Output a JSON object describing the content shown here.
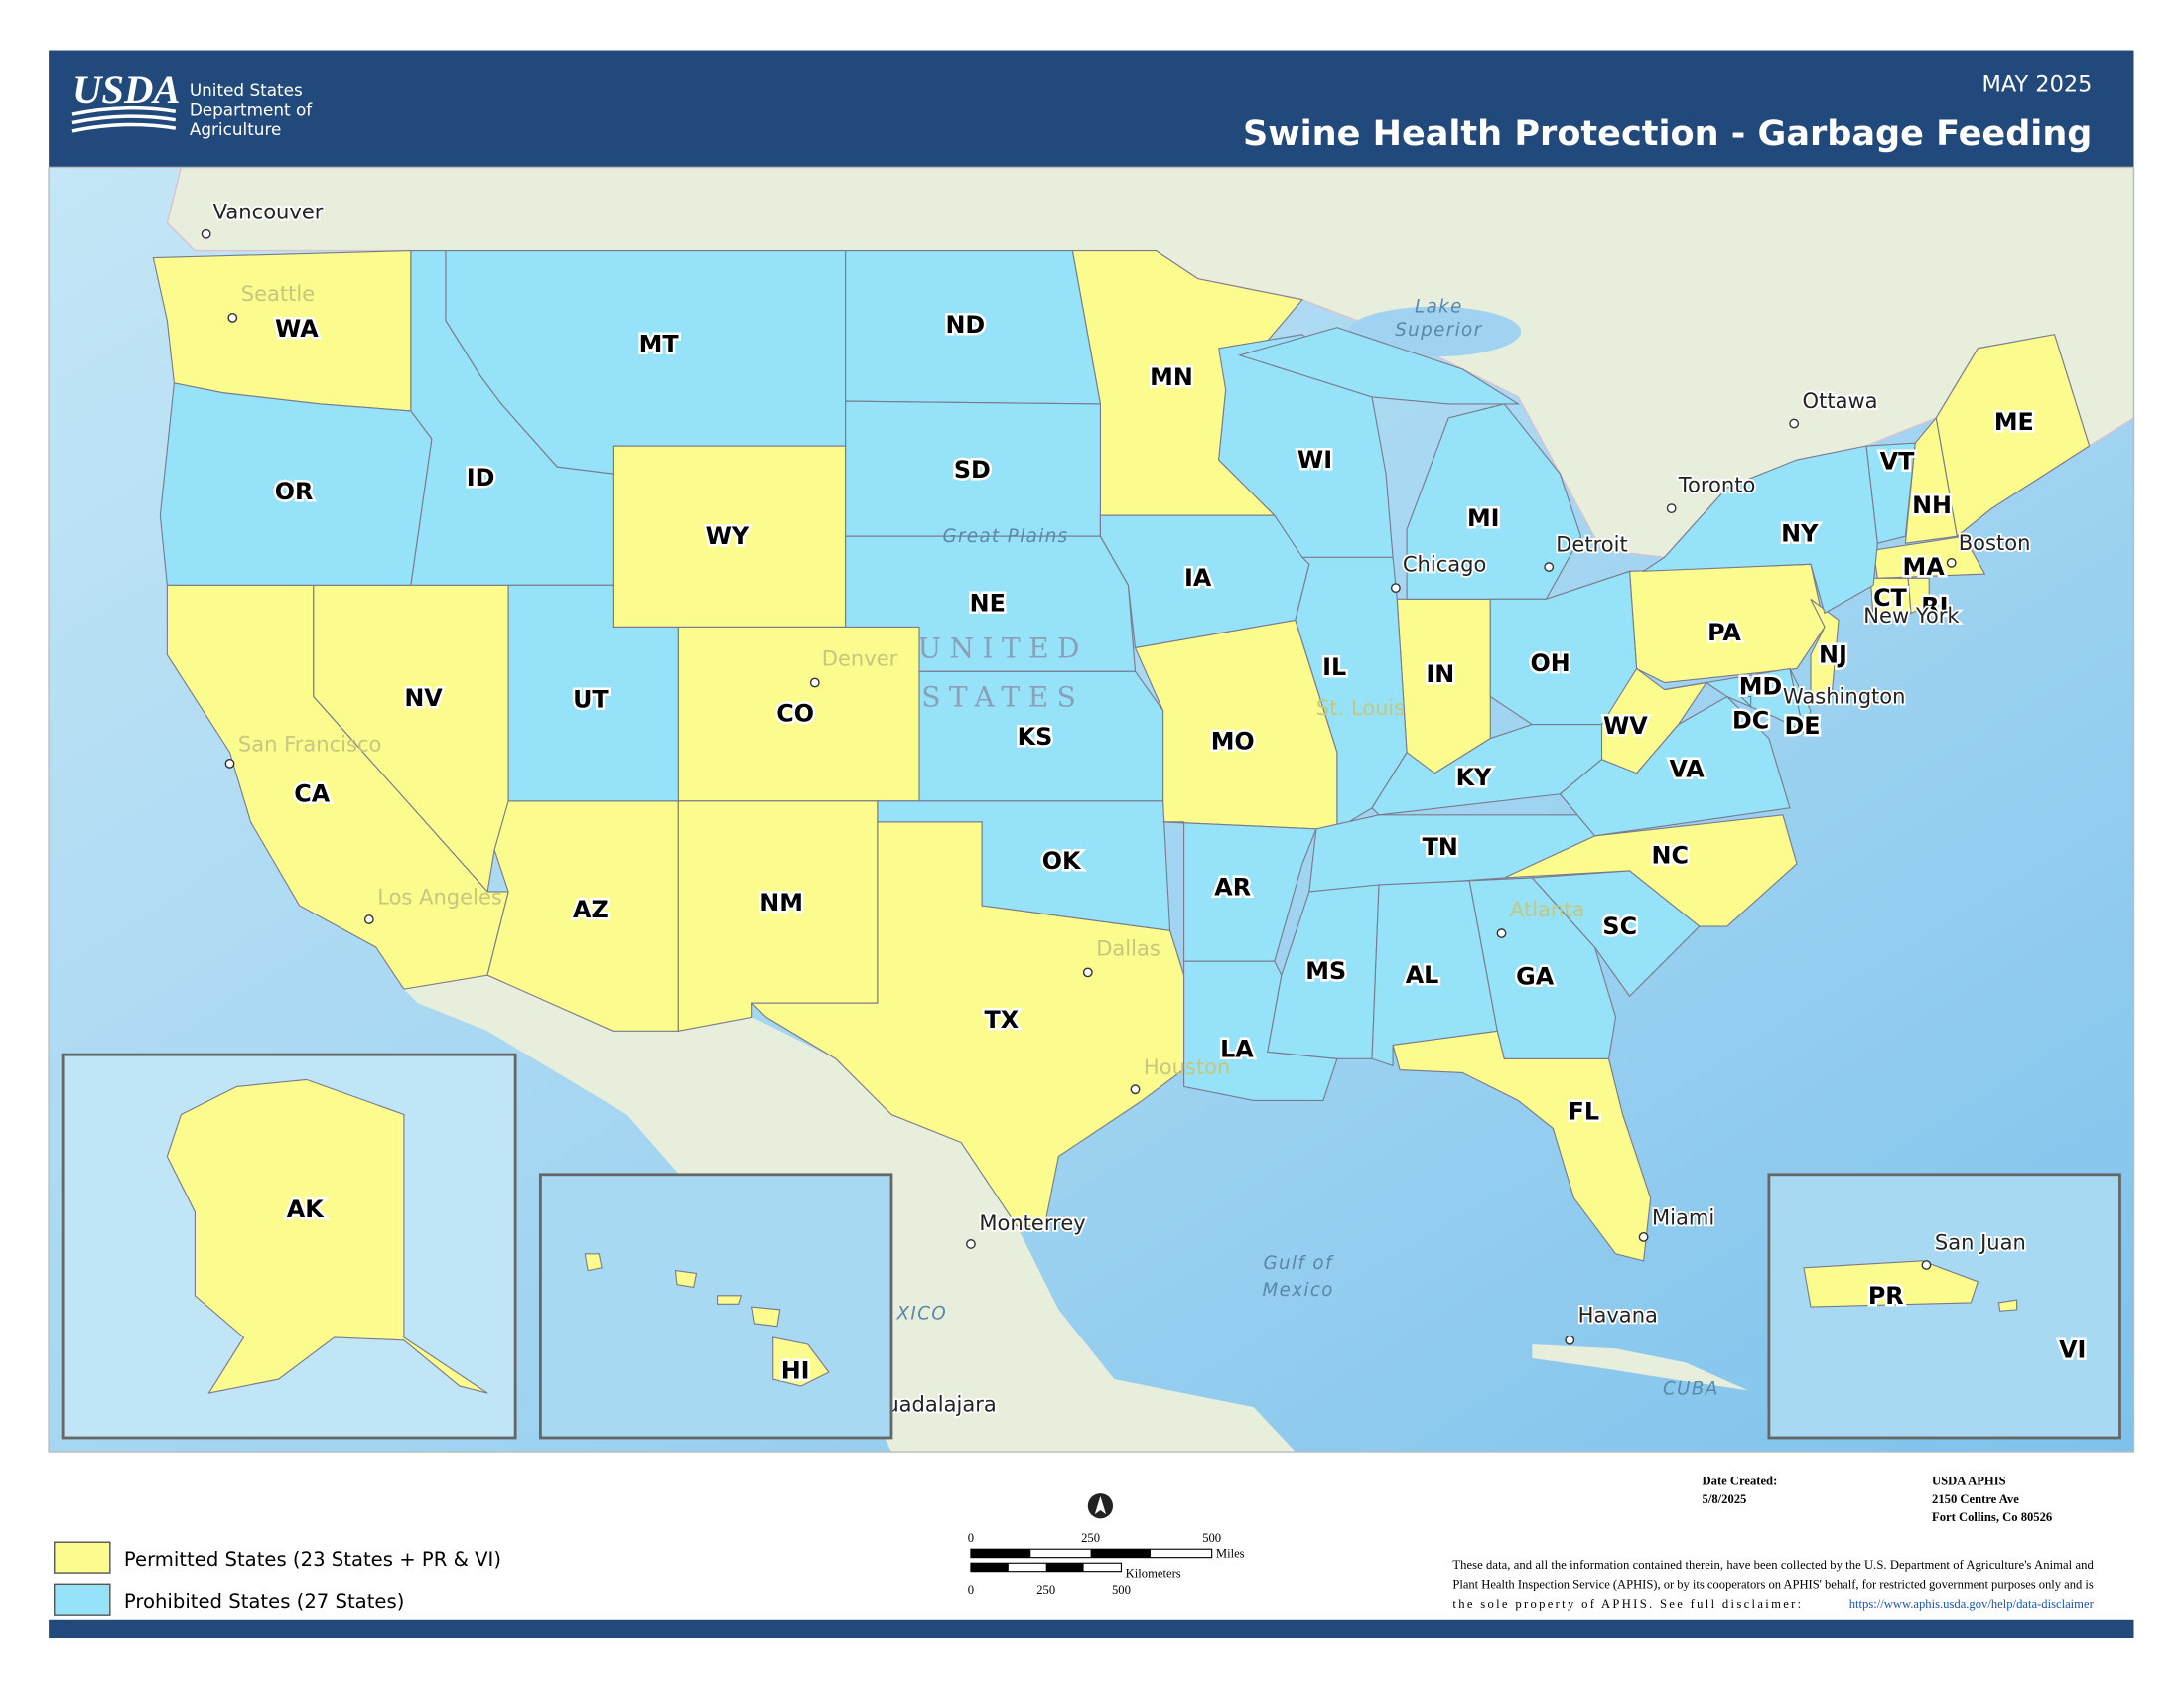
{
  "header": {
    "logo": "USDA",
    "agency": [
      "United States",
      "Department of",
      "Agriculture"
    ],
    "date": "MAY 2025",
    "title": "Swine Health Protection - Garbage Feeding"
  },
  "legend": [
    {
      "label": "Permitted States (23 States + PR & VI)",
      "color": "#fbfb8e",
      "states": [
        "WA",
        "NV",
        "CA",
        "WY",
        "CO",
        "AZ",
        "NM",
        "TX",
        "MN",
        "MO",
        "IN",
        "WV",
        "PA",
        "NJ",
        "NC",
        "FL",
        "ME",
        "NH",
        "MA",
        "CT",
        "RI",
        "AK",
        "HI",
        "PR",
        "VI"
      ]
    },
    {
      "label": "Prohibited States (27 States)",
      "color": "#95e2f9",
      "states": [
        "OR",
        "ID",
        "MT",
        "ND",
        "SD",
        "NE",
        "KS",
        "OK",
        "UT",
        "IA",
        "IL",
        "WI",
        "MI",
        "OH",
        "KY",
        "TN",
        "AR",
        "LA",
        "MS",
        "AL",
        "GA",
        "SC",
        "VA",
        "MD",
        "DE",
        "DC",
        "NY",
        "VT"
      ]
    }
  ],
  "places": [
    "Vancouver",
    "Seattle",
    "Ottawa",
    "Toronto",
    "Detroit",
    "Chicago",
    "Boston",
    "New York",
    "Washington",
    "Denver",
    "San Francisco",
    "Los Angeles",
    "St. Louis",
    "Atlanta",
    "Dallas",
    "Houston",
    "Monterrey",
    "Miami",
    "Havana",
    "uadalajara",
    "San Juan"
  ],
  "features": [
    "Lake",
    "Superior",
    "Great Plains",
    "UNITED",
    "STATES",
    "Gulf of",
    "Mexico",
    "XICO",
    "CUBA"
  ],
  "scale": {
    "miles": [
      "0",
      "250",
      "500"
    ],
    "miles_label": "Miles",
    "km": [
      "0",
      "250",
      "500"
    ],
    "km_label": "Kilometers"
  },
  "footer": {
    "date_label": "Date Created:",
    "date": "5/8/2025",
    "org": [
      "USDA APHIS",
      "2150 Centre Ave",
      "Fort Collins, Co 80526"
    ],
    "disclaimer": [
      "These data, and all the information contained therein, have been collected by the U.S. Department of Agriculture's Animal and",
      "Plant Health Inspection Service (APHIS), or by its cooperators on APHIS' behalf, for restricted government purposes only and is",
      "the sole property of APHIS. See full disclaimer:"
    ],
    "link": "https://www.aphis.usda.gov/help/data-disclaimer"
  }
}
